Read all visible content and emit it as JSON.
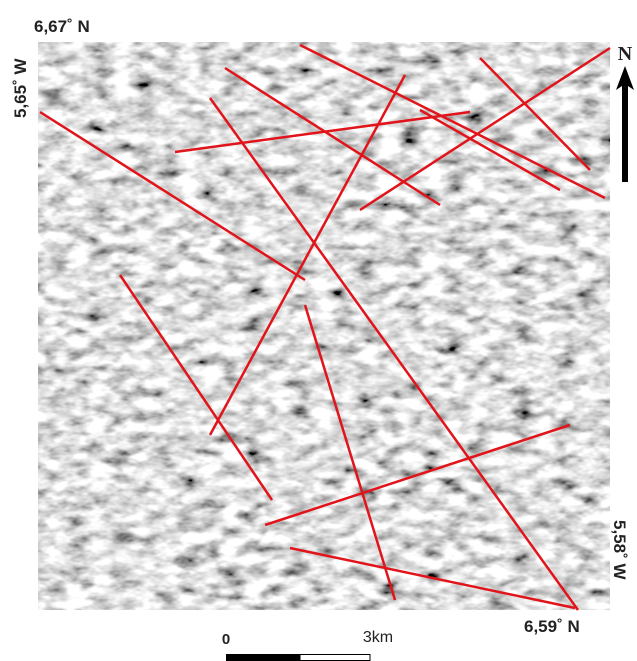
{
  "map": {
    "top_left_label": "6,67˚ N",
    "left_label": "5,65˚ W",
    "north_label": "N",
    "right_label": "5,58˚ W",
    "bottom_right_label": "6,59˚ N",
    "scale_bar": {
      "start_label": "0",
      "end_label": "3km"
    }
  }
}
